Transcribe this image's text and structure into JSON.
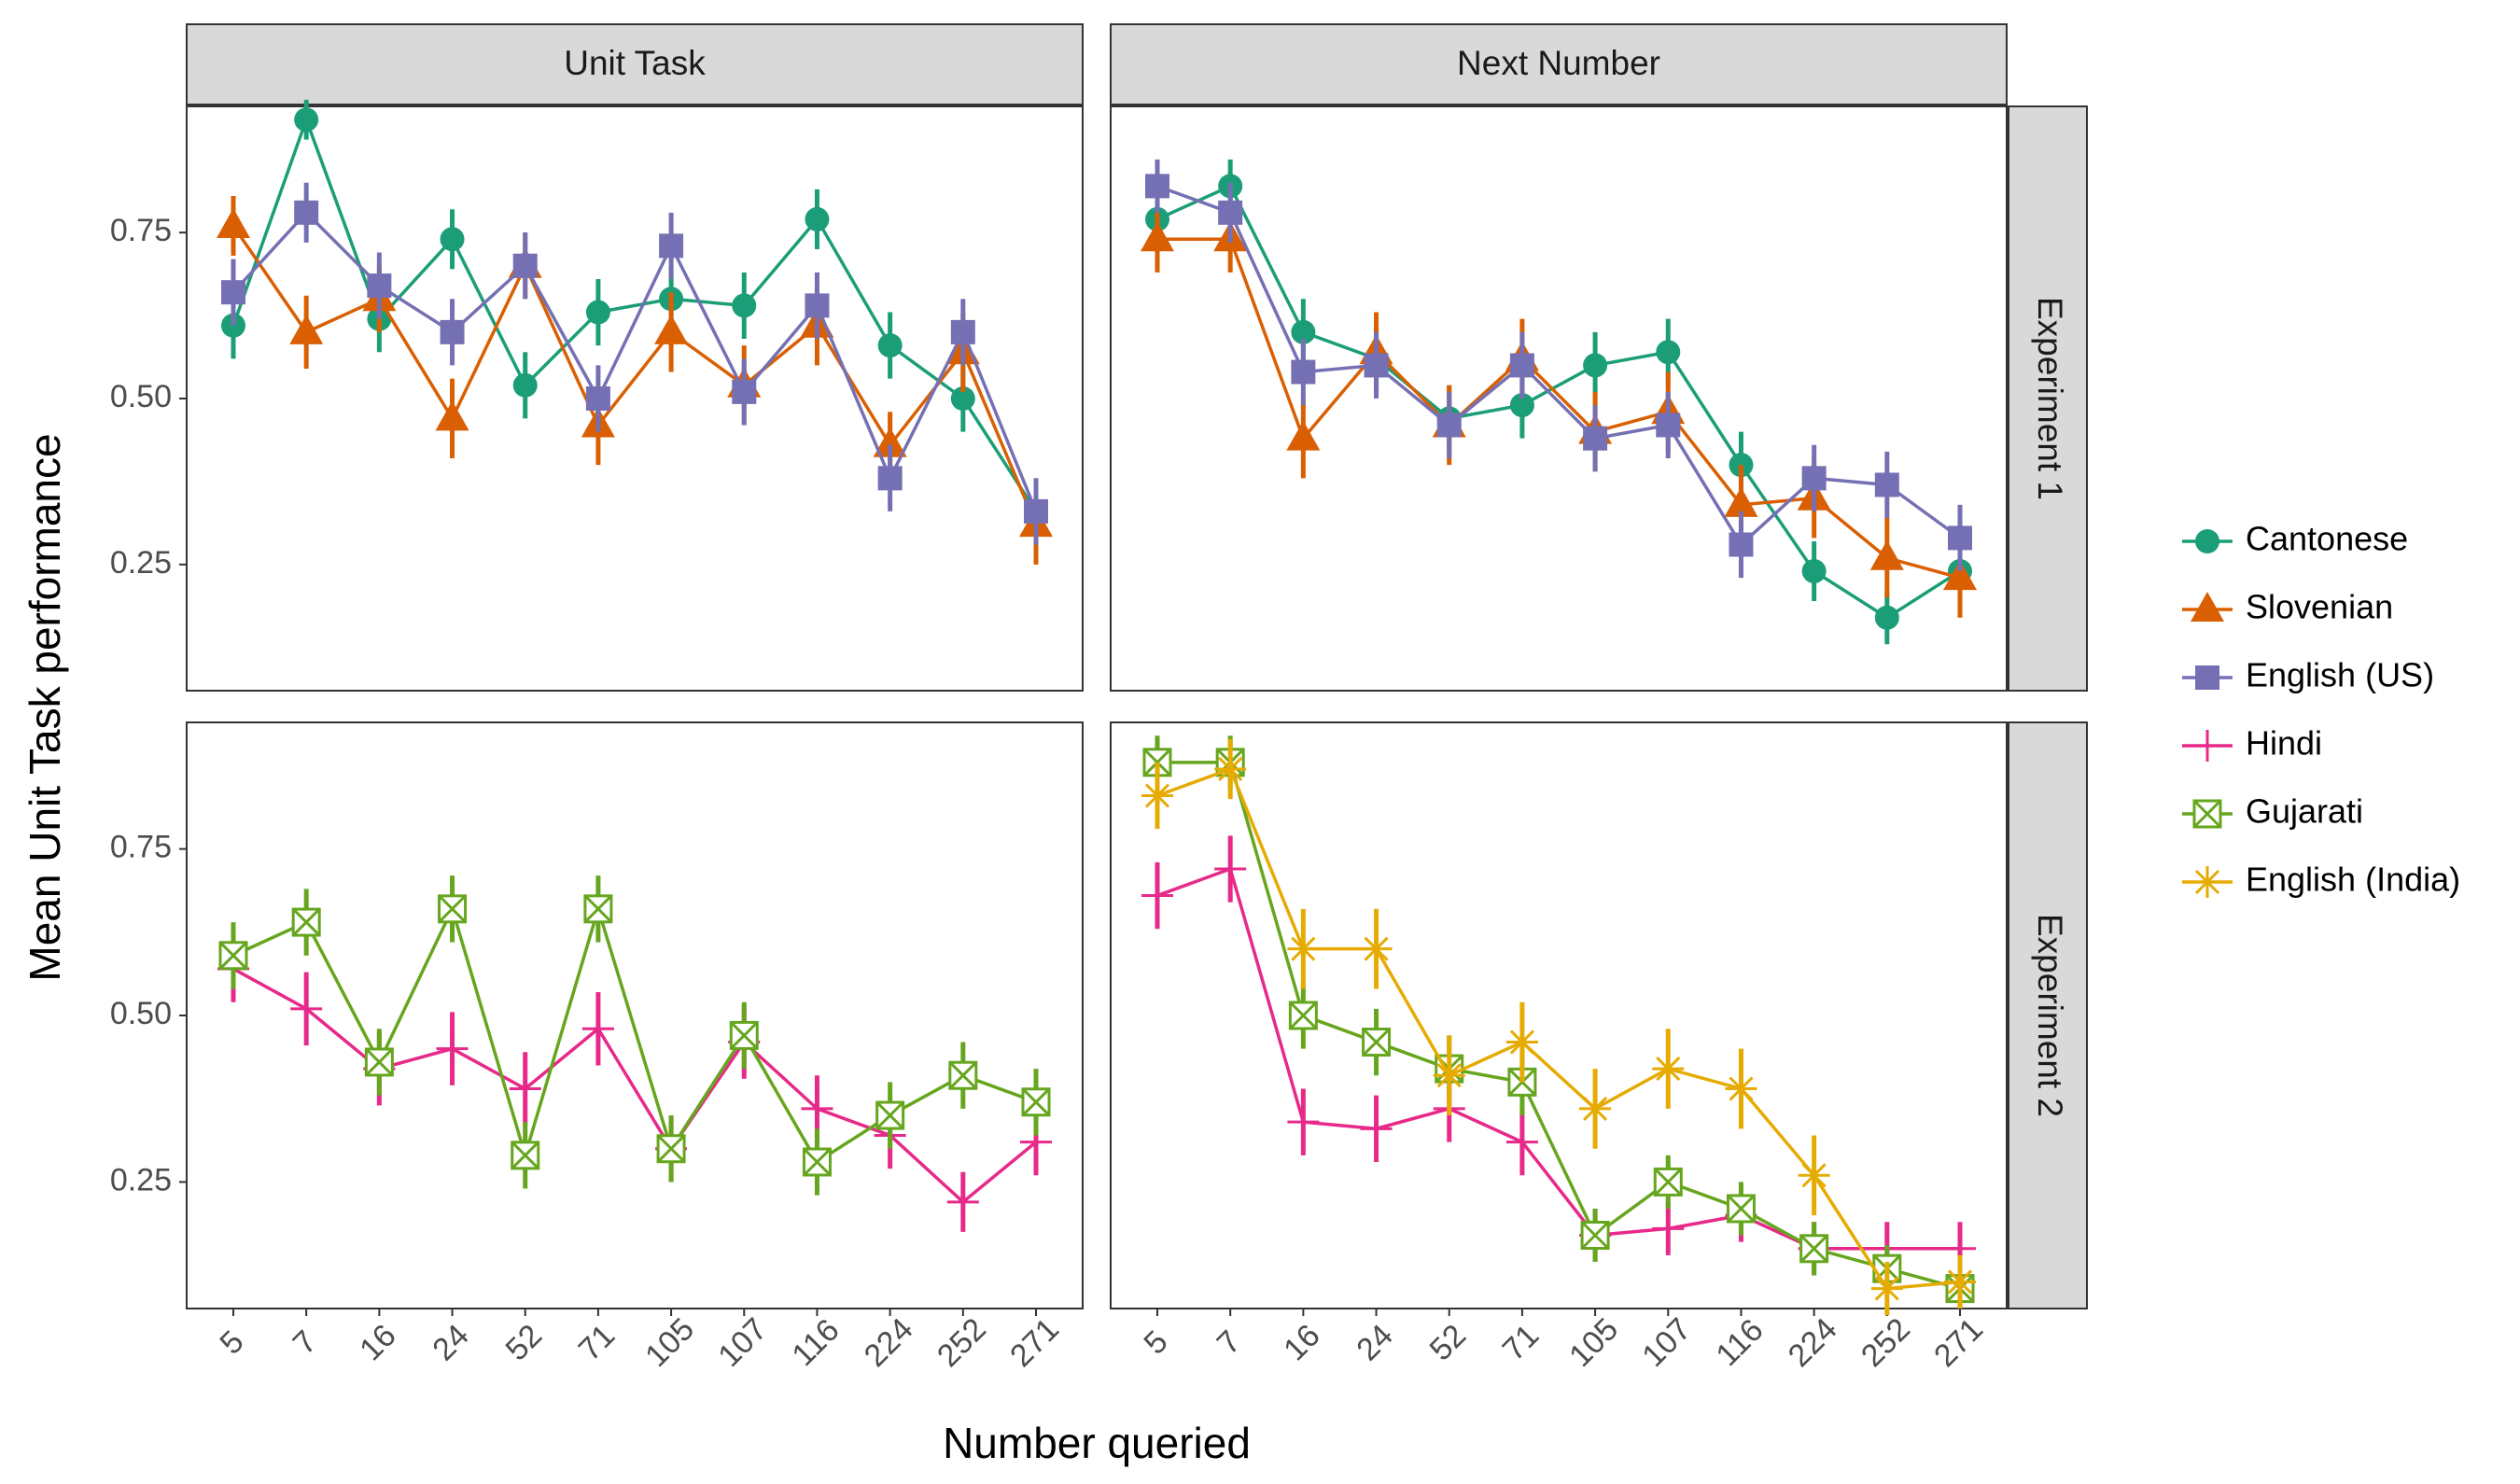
{
  "chart_data": {
    "type": "line",
    "facets": {
      "columns": [
        "Unit Task",
        "Next Number"
      ],
      "rows": [
        "Experiment 1",
        "Experiment 2"
      ]
    },
    "xlabel": "Number queried",
    "ylabel": "Mean Unit Task performance",
    "categories": [
      "5",
      "7",
      "16",
      "24",
      "52",
      "71",
      "105",
      "107",
      "116",
      "224",
      "252",
      "271"
    ],
    "ylim": [
      0.06,
      0.94
    ],
    "yticks": [
      "0.25",
      "0.50",
      "0.75"
    ],
    "grid": false,
    "legend_position": "right",
    "legend": [
      "Cantonese",
      "Slovenian",
      "English (US)",
      "Hindi",
      "Gujarati",
      "English (India)"
    ],
    "series_style": {
      "Cantonese": {
        "color": "#1b9e77",
        "marker": "circle"
      },
      "Slovenian": {
        "color": "#d95f02",
        "marker": "triangle"
      },
      "English (US)": {
        "color": "#7570b3",
        "marker": "square"
      },
      "Hindi": {
        "color": "#e7298a",
        "marker": "plus"
      },
      "Gujarati": {
        "color": "#66a61e",
        "marker": "square-cross"
      },
      "English (India)": {
        "color": "#e6ab02",
        "marker": "asterisk"
      }
    },
    "panels": [
      {
        "row": 0,
        "col": 0,
        "series": [
          {
            "name": "Cantonese",
            "values": [
              0.61,
              0.92,
              0.62,
              0.74,
              0.52,
              0.63,
              0.65,
              0.64,
              0.77,
              0.58,
              0.5,
              0.33
            ],
            "errors": [
              0.05,
              0.03,
              0.05,
              0.045,
              0.05,
              0.05,
              0.05,
              0.05,
              0.045,
              0.05,
              0.05,
              0.05
            ]
          },
          {
            "name": "Slovenian",
            "values": [
              0.76,
              0.6,
              0.65,
              0.47,
              0.7,
              0.46,
              0.6,
              0.52,
              0.61,
              0.43,
              0.57,
              0.31
            ],
            "errors": [
              0.045,
              0.055,
              0.05,
              0.06,
              0.05,
              0.06,
              0.06,
              0.06,
              0.06,
              0.05,
              0.06,
              0.06
            ]
          },
          {
            "name": "English (US)",
            "values": [
              0.66,
              0.78,
              0.67,
              0.6,
              0.7,
              0.5,
              0.73,
              0.51,
              0.64,
              0.38,
              0.6,
              0.33
            ],
            "errors": [
              0.05,
              0.045,
              0.05,
              0.05,
              0.05,
              0.05,
              0.05,
              0.05,
              0.05,
              0.05,
              0.05,
              0.05
            ]
          }
        ]
      },
      {
        "row": 0,
        "col": 1,
        "series": [
          {
            "name": "Cantonese",
            "values": [
              0.77,
              0.82,
              0.6,
              0.56,
              0.47,
              0.49,
              0.55,
              0.57,
              0.4,
              0.24,
              0.17,
              0.24
            ],
            "errors": [
              0.045,
              0.04,
              0.05,
              0.05,
              0.05,
              0.05,
              0.05,
              0.05,
              0.05,
              0.045,
              0.04,
              0.045
            ]
          },
          {
            "name": "Slovenian",
            "values": [
              0.74,
              0.74,
              0.44,
              0.57,
              0.46,
              0.56,
              0.45,
              0.48,
              0.34,
              0.35,
              0.26,
              0.23
            ],
            "errors": [
              0.05,
              0.05,
              0.06,
              0.06,
              0.06,
              0.06,
              0.06,
              0.06,
              0.06,
              0.06,
              0.06,
              0.06
            ]
          },
          {
            "name": "English (US)",
            "values": [
              0.82,
              0.78,
              0.54,
              0.55,
              0.46,
              0.55,
              0.44,
              0.46,
              0.28,
              0.38,
              0.37,
              0.29
            ],
            "errors": [
              0.04,
              0.045,
              0.05,
              0.05,
              0.05,
              0.05,
              0.05,
              0.05,
              0.05,
              0.05,
              0.05,
              0.05
            ]
          }
        ]
      },
      {
        "row": 1,
        "col": 0,
        "series": [
          {
            "name": "Hindi",
            "values": [
              0.57,
              0.51,
              0.42,
              0.45,
              0.39,
              0.48,
              0.3,
              0.46,
              0.36,
              0.32,
              0.22,
              0.31
            ],
            "errors": [
              0.05,
              0.055,
              0.055,
              0.055,
              0.055,
              0.055,
              0.05,
              0.055,
              0.05,
              0.05,
              0.045,
              0.05
            ]
          },
          {
            "name": "Gujarati",
            "values": [
              0.59,
              0.64,
              0.43,
              0.66,
              0.29,
              0.66,
              0.3,
              0.47,
              0.28,
              0.35,
              0.41,
              0.37
            ],
            "errors": [
              0.05,
              0.05,
              0.05,
              0.05,
              0.05,
              0.05,
              0.05,
              0.05,
              0.05,
              0.05,
              0.05,
              0.05
            ]
          }
        ]
      },
      {
        "row": 1,
        "col": 1,
        "series": [
          {
            "name": "Hindi",
            "values": [
              0.68,
              0.72,
              0.34,
              0.33,
              0.36,
              0.31,
              0.17,
              0.18,
              0.2,
              0.15,
              0.15,
              0.15
            ],
            "errors": [
              0.05,
              0.05,
              0.05,
              0.05,
              0.05,
              0.05,
              0.04,
              0.04,
              0.04,
              0.04,
              0.04,
              0.04
            ]
          },
          {
            "name": "Gujarati",
            "values": [
              0.88,
              0.88,
              0.5,
              0.46,
              0.42,
              0.4,
              0.17,
              0.25,
              0.21,
              0.15,
              0.12,
              0.09
            ],
            "errors": [
              0.04,
              0.04,
              0.05,
              0.05,
              0.05,
              0.05,
              0.04,
              0.04,
              0.04,
              0.04,
              0.035,
              0.03
            ]
          },
          {
            "name": "English (India)",
            "values": [
              0.83,
              0.87,
              0.6,
              0.6,
              0.41,
              0.46,
              0.36,
              0.42,
              0.39,
              0.26,
              0.09,
              0.1
            ],
            "errors": [
              0.05,
              0.045,
              0.06,
              0.06,
              0.06,
              0.06,
              0.06,
              0.06,
              0.06,
              0.06,
              0.04,
              0.04
            ]
          }
        ]
      }
    ]
  }
}
